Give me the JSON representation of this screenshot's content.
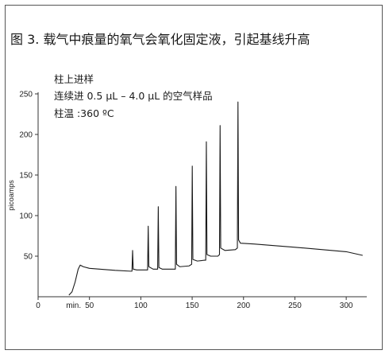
{
  "figure": {
    "title": "图 3. 载气中痕量的氧气会氧化固定液，引起基线升高"
  },
  "annotations": {
    "line1": "柱上进样",
    "line2": "连续进 0.5 μL – 4.0 μL 的空气样品",
    "line3": "柱温 :360 ºC"
  },
  "chart_data": {
    "type": "line",
    "title": "图 3. 载气中痕量的氧气会氧化固定液，引起基线升高",
    "xlabel": "min.",
    "ylabel": "picoamps",
    "xlim": [
      0,
      320
    ],
    "ylim": [
      0,
      250
    ],
    "x_ticks": [
      0,
      50,
      100,
      150,
      200,
      250,
      300
    ],
    "y_ticks": [
      50,
      100,
      150,
      200,
      250
    ],
    "x_tick_labels": [
      "0",
      "50",
      "100",
      "150",
      "200",
      "250",
      "300"
    ],
    "y_tick_labels": [
      "50",
      "100",
      "150",
      "200",
      "250"
    ],
    "grid": false,
    "line_color": "#1a1a1a",
    "series": [
      {
        "points": [
          [
            30,
            2
          ],
          [
            33,
            6
          ],
          [
            36,
            18
          ],
          [
            39,
            34
          ],
          [
            41,
            39
          ],
          [
            44,
            37
          ],
          [
            50,
            35
          ],
          [
            60,
            34
          ],
          [
            75,
            32.5
          ],
          [
            90,
            31.5
          ],
          [
            91.4,
            31.5
          ],
          [
            92,
            57
          ],
          [
            92.6,
            34
          ],
          [
            96,
            33
          ],
          [
            105,
            33
          ],
          [
            106.6,
            33
          ],
          [
            107.2,
            87
          ],
          [
            107.8,
            37
          ],
          [
            112,
            34
          ],
          [
            116,
            34
          ],
          [
            116.4,
            34
          ],
          [
            117,
            111
          ],
          [
            117.6,
            36
          ],
          [
            121,
            34
          ],
          [
            133,
            34
          ],
          [
            133.6,
            34
          ],
          [
            134.2,
            136
          ],
          [
            134.8,
            40
          ],
          [
            138,
            37
          ],
          [
            147,
            38
          ],
          [
            149.5,
            40
          ],
          [
            150.1,
            161
          ],
          [
            150.7,
            46
          ],
          [
            155,
            44
          ],
          [
            162,
            45
          ],
          [
            163.2,
            45
          ],
          [
            163.8,
            191
          ],
          [
            164.4,
            52
          ],
          [
            168,
            50
          ],
          [
            175,
            50
          ],
          [
            176.6,
            52
          ],
          [
            177.2,
            211
          ],
          [
            177.8,
            60
          ],
          [
            182,
            57
          ],
          [
            192,
            58
          ],
          [
            194,
            60
          ],
          [
            194.6,
            240
          ],
          [
            195.2,
            70
          ],
          [
            197,
            66
          ],
          [
            210,
            65
          ],
          [
            250,
            61
          ],
          [
            300,
            55.5
          ],
          [
            316,
            51
          ]
        ]
      }
    ]
  }
}
